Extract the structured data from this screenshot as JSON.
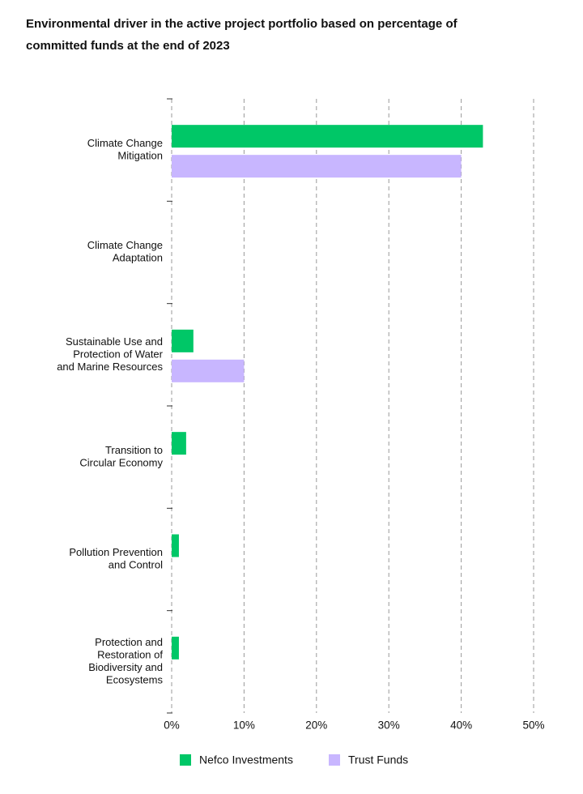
{
  "chart_data": {
    "type": "hbar",
    "title": [
      "Environmental driver in the active project portfolio based on percentage of",
      "committed funds at the end of 2023"
    ],
    "categories": [
      [
        "Climate Change",
        "Mitigation"
      ],
      [
        "Climate Change",
        "Adaptation"
      ],
      [
        "Sustainable Use and",
        "Protection of Water",
        "and Marine Resources"
      ],
      [
        "Transition to",
        "Circular Economy"
      ],
      [
        "Pollution Prevention",
        "and Control"
      ],
      [
        "Protection and",
        "Restoration of",
        "Biodiversity and",
        "Ecosystems"
      ]
    ],
    "series": [
      {
        "name": "Nefco Investments",
        "color": "#00c767",
        "values": [
          43,
          0,
          3,
          2,
          1,
          1
        ]
      },
      {
        "name": "Trust Funds",
        "color": "#c8b6ff",
        "values": [
          40,
          0,
          10,
          0,
          0,
          0
        ]
      }
    ],
    "xlim": [
      0,
      50
    ],
    "xticks": [
      {
        "value": 0,
        "label": "0%"
      },
      {
        "value": 10,
        "label": "10%"
      },
      {
        "value": 20,
        "label": "20%"
      },
      {
        "value": 30,
        "label": "30%"
      },
      {
        "value": 40,
        "label": "40%"
      },
      {
        "value": 50,
        "label": "50%"
      }
    ],
    "grid": true
  }
}
